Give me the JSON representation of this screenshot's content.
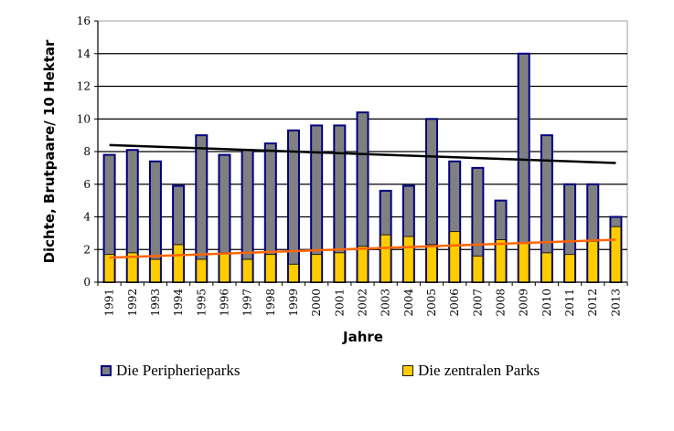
{
  "chart_data": {
    "type": "bar",
    "title": "",
    "xlabel": "Jahre",
    "ylabel": "Dichte, Brutpaare/ 10 Hektar",
    "ylim": [
      0,
      16
    ],
    "yticks": [
      0,
      2,
      4,
      6,
      8,
      10,
      12,
      14,
      16
    ],
    "grid": true,
    "legend_position": "bottom",
    "categories": [
      "1991",
      "1992",
      "1993",
      "1994",
      "1995",
      "1996",
      "1997",
      "1998",
      "1999",
      "2000",
      "2001",
      "2002",
      "2003",
      "2004",
      "2005",
      "2006",
      "2007",
      "2008",
      "2009",
      "2010",
      "2011",
      "2012",
      "2013"
    ],
    "series": [
      {
        "name": "Die Peripherieparks",
        "color": "#808080",
        "edge_color": "#000080",
        "values": [
          7.8,
          8.1,
          7.4,
          5.9,
          9.0,
          7.8,
          8.1,
          8.5,
          9.3,
          9.6,
          9.6,
          10.4,
          5.6,
          5.9,
          10.0,
          7.4,
          7.0,
          5.0,
          14.0,
          9.0,
          6.0,
          6.0,
          4.0
        ]
      },
      {
        "name": "Die zentralen Parks",
        "color": "#FFCC00",
        "edge_color": "#1a1a1a",
        "values": [
          1.7,
          1.8,
          1.4,
          2.3,
          1.4,
          1.8,
          1.4,
          1.7,
          1.1,
          1.7,
          1.8,
          2.2,
          2.9,
          2.8,
          2.3,
          3.1,
          1.6,
          2.6,
          2.4,
          1.8,
          1.7,
          2.5,
          3.4
        ]
      }
    ],
    "trendlines": [
      {
        "series": "Die Peripherieparks",
        "type": "linear",
        "color": "#000000",
        "start": 8.4,
        "end": 7.3
      },
      {
        "series": "Die zentralen Parks",
        "type": "linear",
        "color": "#FF6600",
        "start": 1.5,
        "end": 2.6
      }
    ]
  },
  "legend": {
    "items": [
      {
        "label": "Die Peripherieparks",
        "fill": "#808080",
        "border": "#000080"
      },
      {
        "label": "Die zentralen Parks",
        "fill": "#FFCC00",
        "border": "#1a1a1a"
      }
    ]
  }
}
